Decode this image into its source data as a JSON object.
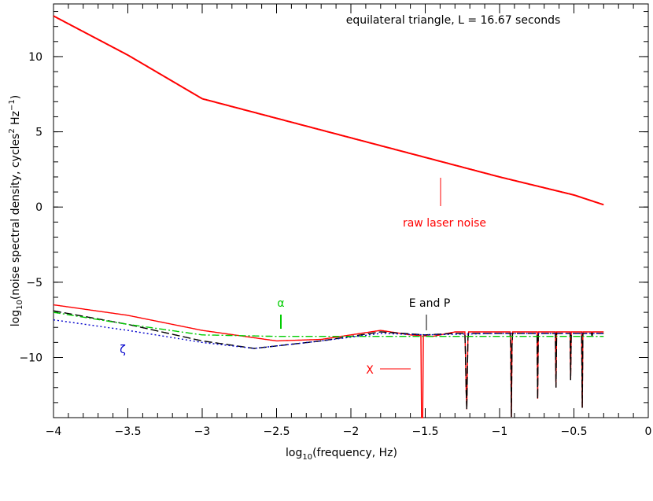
{
  "chart_data": {
    "type": "line",
    "title": "equilateral triangle, L = 16.67 seconds",
    "xlabel": "log10(frequency, Hz)",
    "ylabel": "log10(noise spectral density, cycles2 Hz−1)",
    "xlim": [
      -4,
      0
    ],
    "ylim": [
      -14,
      13.5
    ],
    "x_ticks": [
      -4,
      -3.5,
      -3,
      -2.5,
      -2,
      -1.5,
      -1,
      -0.5,
      0
    ],
    "y_ticks": [
      -10,
      -5,
      0,
      5,
      10
    ],
    "grid": false,
    "series": [
      {
        "name": "raw laser noise",
        "color": "#ff0000",
        "style": "solid",
        "x": [
          -4,
          -3.5,
          -3.0,
          -2.5,
          -2.0,
          -1.5,
          -1.0,
          -0.5,
          -0.3
        ],
        "y": [
          12.7,
          10.1,
          7.2,
          5.9,
          4.6,
          3.3,
          2.0,
          0.8,
          0.15
        ]
      },
      {
        "name": "X",
        "color": "#ff0000",
        "style": "solid",
        "x": [
          -4,
          -3.5,
          -3.0,
          -2.5,
          -2.2,
          -1.8,
          -1.6,
          -1.52,
          -1.45,
          -1.3,
          -1.0,
          -0.5,
          -0.3
        ],
        "y": [
          -6.5,
          -7.2,
          -8.2,
          -8.9,
          -8.8,
          -8.2,
          -8.5,
          -14,
          -8.6,
          -8.3,
          -8.3,
          -8.3,
          -8.3
        ],
        "note": "oscillates between -8.3 and deep nulls (≈-14) above log f ≈ -1.25"
      },
      {
        "name": "E and P",
        "color": "#000000",
        "style": "long-dash",
        "x": [
          -4,
          -3.5,
          -3.0,
          -2.65,
          -2.2,
          -1.8,
          -1.5,
          -1.3,
          -1.0,
          -0.5,
          -0.3
        ],
        "y": [
          -6.9,
          -7.8,
          -8.9,
          -9.4,
          -8.9,
          -8.3,
          -8.5,
          -8.4,
          -8.4,
          -8.4,
          -8.4
        ],
        "note": "periodic deep nulls from log f ≈ -1.22"
      },
      {
        "name": "ζ",
        "color": "#0000cc",
        "style": "dotted",
        "x": [
          -4,
          -3.5,
          -3.0,
          -2.65,
          -2.2,
          -1.8,
          -1.5,
          -1.0,
          -0.5,
          -0.3
        ],
        "y": [
          -7.5,
          -8.2,
          -9.0,
          -9.4,
          -8.9,
          -8.4,
          -8.5,
          -8.4,
          -8.4,
          -8.4
        ]
      },
      {
        "name": "α",
        "color": "#00cc00",
        "style": "dash-dot",
        "x": [
          -4,
          -3.5,
          -3.0,
          -2.5,
          -2.0,
          -1.5,
          -1.0,
          -0.5,
          -0.3
        ],
        "y": [
          -7.0,
          -7.8,
          -8.5,
          -8.6,
          -8.6,
          -8.6,
          -8.6,
          -8.6,
          -8.6
        ]
      }
    ],
    "annotations": [
      {
        "text": "raw laser noise",
        "color": "#ff0000"
      },
      {
        "text": "α",
        "color": "#00cc00"
      },
      {
        "text": "E and P",
        "color": "#000000"
      },
      {
        "text": "ζ",
        "color": "#0000cc"
      },
      {
        "text": "X",
        "color": "#ff0000"
      }
    ]
  }
}
